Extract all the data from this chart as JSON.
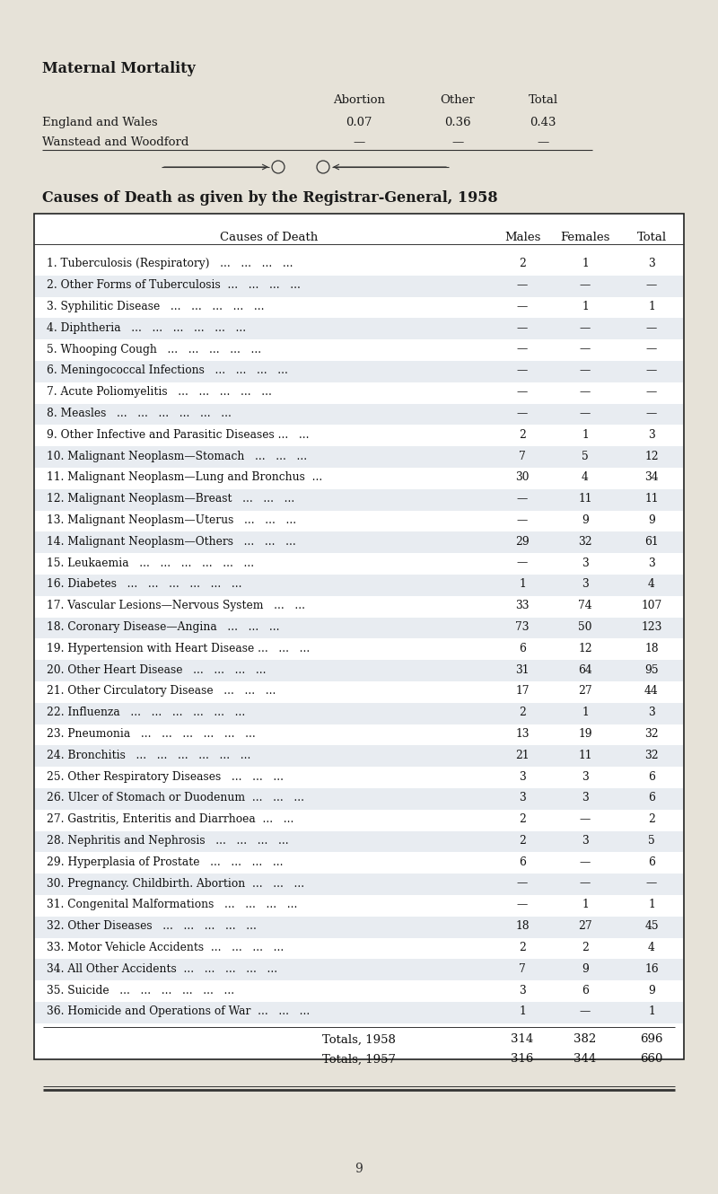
{
  "bg_color": "#e6e2d8",
  "maternal_title": "Maternal Mortality",
  "maternal_headers": [
    "Abortion",
    "Other",
    "Total"
  ],
  "maternal_rows": [
    [
      "England and Wales",
      "0.07",
      "0.36",
      "0.43"
    ],
    [
      "Wanstead and Woodford",
      "—",
      "—",
      "—"
    ]
  ],
  "section_title": "Causes of Death as given by the Registrar-General, 1958",
  "table_header_cols": [
    "Causes of Death",
    "Males",
    "Females",
    "Total"
  ],
  "rows": [
    [
      "1. Tuberculosis (Respiratory)   ...   ...   ...   ...",
      "2",
      "1",
      "3"
    ],
    [
      "2. Other Forms of Tuberculosis  ...   ...   ...   ...",
      "—",
      "—",
      "—"
    ],
    [
      "3. Syphilitic Disease   ...   ...   ...   ...   ...",
      "—",
      "1",
      "1"
    ],
    [
      "4. Diphtheria   ...   ...   ...   ...   ...   ...",
      "—",
      "—",
      "—"
    ],
    [
      "5. Whooping Cough   ...   ...   ...   ...   ...",
      "—",
      "—",
      "—"
    ],
    [
      "6. Meningococcal Infections   ...   ...   ...   ...",
      "—",
      "—",
      "—"
    ],
    [
      "7. Acute Poliomyelitis   ...   ...   ...   ...   ...",
      "—",
      "—",
      "—"
    ],
    [
      "8. Measles   ...   ...   ...   ...   ...   ...",
      "—",
      "—",
      "—"
    ],
    [
      "9. Other Infective and Parasitic Diseases ...   ...",
      "2",
      "1",
      "3"
    ],
    [
      "10. Malignant Neoplasm—Stomach   ...   ...   ...",
      "7",
      "5",
      "12"
    ],
    [
      "11. Malignant Neoplasm—Lung and Bronchus  ...",
      "30",
      "4",
      "34"
    ],
    [
      "12. Malignant Neoplasm—Breast   ...   ...   ...",
      "—",
      "11",
      "11"
    ],
    [
      "13. Malignant Neoplasm—Uterus   ...   ...   ...",
      "—",
      "9",
      "9"
    ],
    [
      "14. Malignant Neoplasm—Others   ...   ...   ...",
      "29",
      "32",
      "61"
    ],
    [
      "15. Leukaemia   ...   ...   ...   ...   ...   ...",
      "—",
      "3",
      "3"
    ],
    [
      "16. Diabetes   ...   ...   ...   ...   ...   ...",
      "1",
      "3",
      "4"
    ],
    [
      "17. Vascular Lesions—Nervous System   ...   ...",
      "33",
      "74",
      "107"
    ],
    [
      "18. Coronary Disease—Angina   ...   ...   ...",
      "73",
      "50",
      "123"
    ],
    [
      "19. Hypertension with Heart Disease ...   ...   ...",
      "6",
      "12",
      "18"
    ],
    [
      "20. Other Heart Disease   ...   ...   ...   ...",
      "31",
      "64",
      "95"
    ],
    [
      "21. Other Circulatory Disease   ...   ...   ...",
      "17",
      "27",
      "44"
    ],
    [
      "22. Influenza   ...   ...   ...   ...   ...   ...",
      "2",
      "1",
      "3"
    ],
    [
      "23. Pneumonia   ...   ...   ...   ...   ...   ...",
      "13",
      "19",
      "32"
    ],
    [
      "24. Bronchitis   ...   ...   ...   ...   ...   ...",
      "21",
      "11",
      "32"
    ],
    [
      "25. Other Respiratory Diseases   ...   ...   ...",
      "3",
      "3",
      "6"
    ],
    [
      "26. Ulcer of Stomach or Duodenum  ...   ...   ...",
      "3",
      "3",
      "6"
    ],
    [
      "27. Gastritis, Enteritis and Diarrhoea  ...   ...",
      "2",
      "—",
      "2"
    ],
    [
      "28. Nephritis and Nephrosis   ...   ...   ...   ...",
      "2",
      "3",
      "5"
    ],
    [
      "29. Hyperplasia of Prostate   ...   ...   ...   ...",
      "6",
      "—",
      "6"
    ],
    [
      "30. Pregnancy. Childbirth. Abortion  ...   ...   ...",
      "—",
      "—",
      "—"
    ],
    [
      "31. Congenital Malformations   ...   ...   ...   ...",
      "—",
      "1",
      "1"
    ],
    [
      "32. Other Diseases   ...   ...   ...   ...   ...",
      "18",
      "27",
      "45"
    ],
    [
      "33. Motor Vehicle Accidents  ...   ...   ...   ...",
      "2",
      "2",
      "4"
    ],
    [
      "34. All Other Accidents  ...   ...   ...   ...   ...",
      "7",
      "9",
      "16"
    ],
    [
      "35. Suicide   ...   ...   ...   ...   ...   ...",
      "3",
      "6",
      "9"
    ],
    [
      "36. Homicide and Operations of War  ...   ...   ...",
      "1",
      "—",
      "1"
    ]
  ],
  "totals": [
    [
      "Totals, 1958",
      "314",
      "382",
      "696"
    ],
    [
      "Totals, 1957",
      "316",
      "344",
      "660"
    ]
  ],
  "page_number": "9",
  "shade_color": "#cdd5e0"
}
